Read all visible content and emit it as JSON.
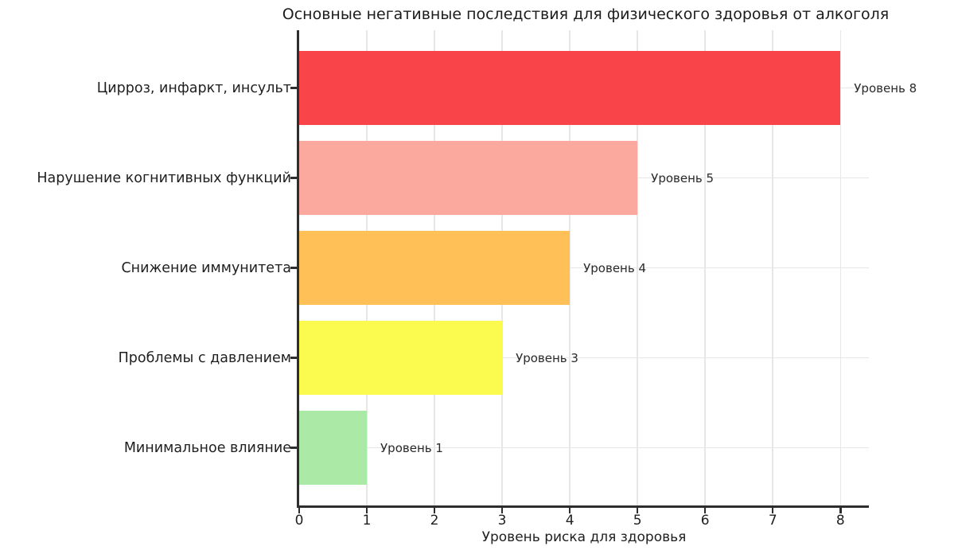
{
  "chart_data": {
    "type": "bar",
    "orientation": "horizontal",
    "title": "Основные негативные последствия для физического здоровья от алкоголя",
    "xlabel": "Уровень риска для здоровья",
    "xlim": [
      0,
      8.42
    ],
    "xticks": [
      0,
      1,
      2,
      3,
      4,
      5,
      6,
      7,
      8
    ],
    "grid": true,
    "legend": false,
    "bars": [
      {
        "category": "Цирроз, инфаркт, инсульт",
        "value": 8,
        "label": "Уровень 8",
        "color": "#f9444a"
      },
      {
        "category": "Нарушение когнитивных функций",
        "value": 5,
        "label": "Уровень 5",
        "color": "#fba89e"
      },
      {
        "category": "Снижение иммунитета",
        "value": 4,
        "label": "Уровень 4",
        "color": "#fec057"
      },
      {
        "category": "Проблемы с давлением",
        "value": 3,
        "label": "Уровень 3",
        "color": "#fbfa4f"
      },
      {
        "category": "Минимальное влияние",
        "value": 1,
        "label": "Уровень 1",
        "color": "#aaeaa6"
      }
    ]
  }
}
